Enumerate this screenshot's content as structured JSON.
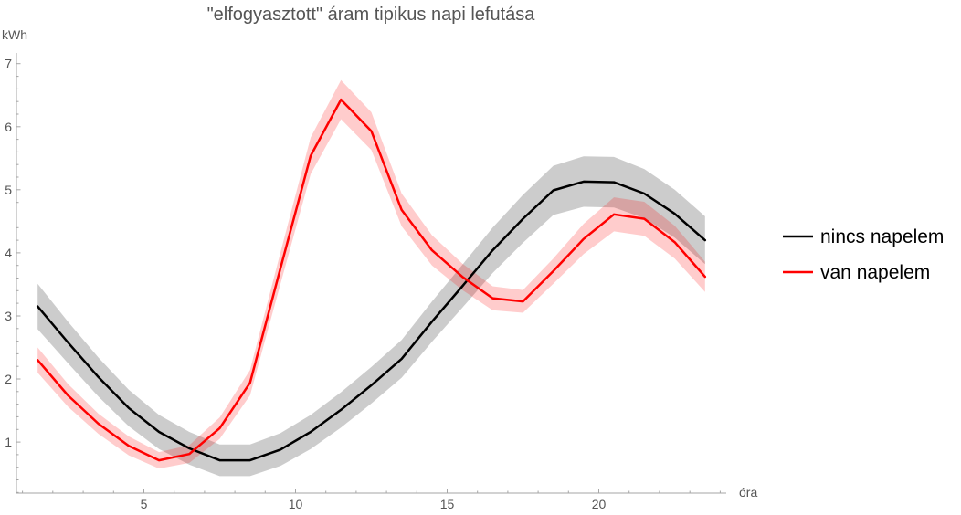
{
  "chart_data": {
    "type": "line",
    "title": "\"elfogyasztott\" áram tipikus napi lefutása",
    "xlabel": "óra",
    "ylabel": "kWh",
    "xlim": [
      0.8,
      24.2
    ],
    "ylim": [
      0.19,
      7.17
    ],
    "xticks": [
      5,
      10,
      15,
      20
    ],
    "yticks": [
      1,
      2,
      3,
      4,
      5,
      6,
      7
    ],
    "grid": false,
    "legend": "right",
    "x": [
      1.5,
      2.5,
      3.5,
      4.5,
      5.5,
      6.5,
      7.5,
      8.5,
      9.5,
      10.5,
      11.5,
      12.5,
      13.5,
      14.5,
      15.5,
      16.5,
      17.5,
      18.5,
      19.5,
      20.5,
      21.5,
      22.5,
      23.5
    ],
    "series": [
      {
        "name": "nincs napelem",
        "color": "#000000",
        "values": [
          3.15,
          2.58,
          2.03,
          1.54,
          1.16,
          0.9,
          0.71,
          0.71,
          0.88,
          1.16,
          1.51,
          1.9,
          2.32,
          2.91,
          3.47,
          4.04,
          4.54,
          4.99,
          5.13,
          5.12,
          4.94,
          4.62,
          4.2
        ],
        "lower": [
          2.79,
          2.25,
          1.72,
          1.25,
          0.89,
          0.64,
          0.46,
          0.46,
          0.62,
          0.89,
          1.23,
          1.61,
          2.02,
          2.59,
          3.13,
          3.68,
          4.16,
          4.6,
          4.73,
          4.72,
          4.55,
          4.24,
          3.82
        ],
        "upper": [
          3.51,
          2.91,
          2.34,
          1.83,
          1.43,
          1.16,
          0.96,
          0.96,
          1.14,
          1.43,
          1.79,
          2.19,
          2.62,
          3.23,
          3.81,
          4.4,
          4.92,
          5.38,
          5.53,
          5.52,
          5.33,
          5.0,
          4.58
        ]
      },
      {
        "name": "van napelem",
        "color": "#ff0000",
        "values": [
          2.3,
          1.74,
          1.29,
          0.94,
          0.71,
          0.81,
          1.22,
          1.94,
          3.75,
          5.54,
          6.43,
          5.93,
          4.68,
          4.04,
          3.62,
          3.28,
          3.23,
          3.71,
          4.22,
          4.61,
          4.54,
          4.17,
          3.62
        ],
        "lower": [
          2.1,
          1.56,
          1.13,
          0.79,
          0.58,
          0.67,
          1.05,
          1.74,
          3.5,
          5.25,
          6.12,
          5.63,
          4.42,
          3.8,
          3.41,
          3.09,
          3.05,
          3.51,
          3.98,
          4.34,
          4.27,
          3.91,
          3.38
        ],
        "upper": [
          2.5,
          1.92,
          1.45,
          1.09,
          0.84,
          0.95,
          1.39,
          2.14,
          4.0,
          5.83,
          6.74,
          6.23,
          4.94,
          4.28,
          3.83,
          3.47,
          3.41,
          3.91,
          4.46,
          4.88,
          4.81,
          4.43,
          3.86
        ]
      }
    ]
  }
}
